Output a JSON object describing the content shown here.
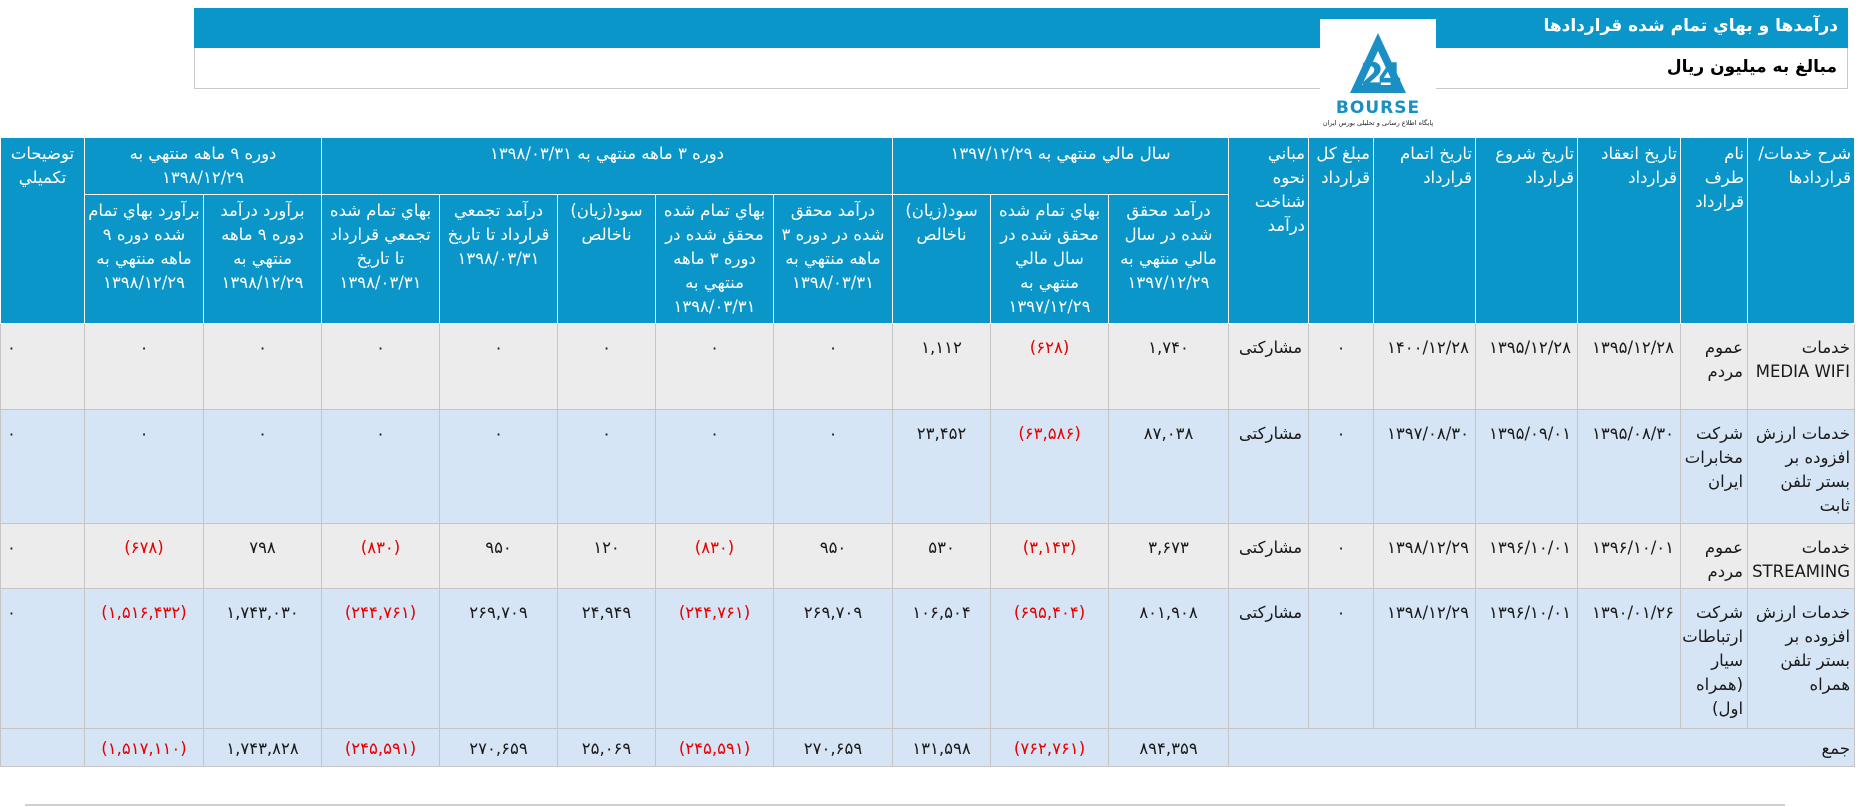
{
  "header": {
    "title": "درآمدها و بهاي تمام شده قراردادها",
    "unit_note": "مبالغ به ميليون ريال"
  },
  "logo": {
    "brand_text": "BOURSE",
    "tagline": "پایگاه اطلاع رسانی و تحلیلی بورس ایران",
    "number": "24",
    "color": "#1a8fc4"
  },
  "table": {
    "groups": {
      "fiscal_year": "سال مالي منتهي به ۱۳۹۷/۱۲/۲۹",
      "period_3m": "دوره ۳ ماهه منتهي به ۱۳۹۸/۰۳/۳۱",
      "period_9m": "دوره ۹ ماهه منتهي به ۱۳۹۸/۱۲/۲۹"
    },
    "columns": {
      "service": "شرح خدمات/ قراردادها",
      "party": "نام طرف قرارداد",
      "contract_date": "تاريخ انعقاد قرارداد",
      "start_date": "تاريخ شروع قرارداد",
      "end_date": "تاريخ اتمام قرارداد",
      "total_amount": "مبلغ كل قرارداد",
      "recognition_basis": "مباني نحوه شناخت درآمد",
      "fy_revenue": "درآمد محقق شده در سال مالي منتهي به ۱۳۹۷/۱۲/۲۹",
      "fy_cost": "بهاي تمام شده محقق شده در سال مالي منتهي به ۱۳۹۷/۱۲/۲۹",
      "fy_profit": "سود(زيان) ناخالص",
      "p3_revenue": "درآمد محقق شده در دوره ۳ ماهه منتهي به ۱۳۹۸/۰۳/۳۱",
      "p3_cost": "بهاي تمام شده محقق شده در دوره ۳ ماهه منتهي به ۱۳۹۸/۰۳/۳۱",
      "p3_profit": "سود(زيان) ناخالص",
      "cum_revenue": "درآمد تجمعي قرارداد تا تاريخ ۱۳۹۸/۰۳/۳۱",
      "cum_cost": "بهاي تمام شده تجمعي قرارداد تا تاريخ ۱۳۹۸/۰۳/۳۱",
      "est_revenue": "برآورد درآمد دوره ۹ ماهه منتهي به ۱۳۹۸/۱۲/۲۹",
      "est_cost": "برآورد بهاي تمام شده دوره ۹ ماهه منتهي به ۱۳۹۸/۱۲/۲۹",
      "notes": "توضيحات تكميلي"
    },
    "rows": [
      {
        "service": "خدمات MEDIA WIFI",
        "party": "عموم مردم",
        "contract_date": "۱۳۹۵/۱۲/۲۸",
        "start_date": "۱۳۹۵/۱۲/۲۸",
        "end_date": "۱۴۰۰/۱۲/۲۸",
        "total_amount": "۰",
        "recognition_basis": "مشاركتی",
        "fy_revenue": "۱,۷۴۰",
        "fy_cost": "(۶۲۸)",
        "fy_profit": "۱,۱۱۲",
        "p3_revenue": "۰",
        "p3_cost": "۰",
        "p3_profit": "۰",
        "cum_revenue": "۰",
        "cum_cost": "۰",
        "est_revenue": "۰",
        "est_cost": "۰",
        "notes": "۰"
      },
      {
        "service": "خدمات ارزش افزوده بر بستر تلفن ثابت",
        "party": "شرکت مخابرات ایران",
        "contract_date": "۱۳۹۵/۰۸/۳۰",
        "start_date": "۱۳۹۵/۰۹/۰۱",
        "end_date": "۱۳۹۷/۰۸/۳۰",
        "total_amount": "۰",
        "recognition_basis": "مشاركتی",
        "fy_revenue": "۸۷,۰۳۸",
        "fy_cost": "(۶۳,۵۸۶)",
        "fy_profit": "۲۳,۴۵۲",
        "p3_revenue": "۰",
        "p3_cost": "۰",
        "p3_profit": "۰",
        "cum_revenue": "۰",
        "cum_cost": "۰",
        "est_revenue": "۰",
        "est_cost": "۰",
        "notes": "۰"
      },
      {
        "service": "خدمات STREAMING",
        "party": "عموم مردم",
        "contract_date": "۱۳۹۶/۱۰/۰۱",
        "start_date": "۱۳۹۶/۱۰/۰۱",
        "end_date": "۱۳۹۸/۱۲/۲۹",
        "total_amount": "۰",
        "recognition_basis": "مشاركتی",
        "fy_revenue": "۳,۶۷۳",
        "fy_cost": "(۳,۱۴۳)",
        "fy_profit": "۵۳۰",
        "p3_revenue": "۹۵۰",
        "p3_cost": "(۸۳۰)",
        "p3_profit": "۱۲۰",
        "cum_revenue": "۹۵۰",
        "cum_cost": "(۸۳۰)",
        "est_revenue": "۷۹۸",
        "est_cost": "(۶۷۸)",
        "notes": "۰"
      },
      {
        "service": "خدمات ارزش افزوده بر بستر تلفن همراه",
        "party": "شرکت ارتباطات سیار (همراه اول)",
        "contract_date": "۱۳۹۰/۰۱/۲۶",
        "start_date": "۱۳۹۶/۱۰/۰۱",
        "end_date": "۱۳۹۸/۱۲/۲۹",
        "total_amount": "۰",
        "recognition_basis": "مشاركتی",
        "fy_revenue": "۸۰۱,۹۰۸",
        "fy_cost": "(۶۹۵,۴۰۴)",
        "fy_profit": "۱۰۶,۵۰۴",
        "p3_revenue": "۲۶۹,۷۰۹",
        "p3_cost": "(۲۴۴,۷۶۱)",
        "p3_profit": "۲۴,۹۴۹",
        "cum_revenue": "۲۶۹,۷۰۹",
        "cum_cost": "(۲۴۴,۷۶۱)",
        "est_revenue": "۱,۷۴۳,۰۳۰",
        "est_cost": "(۱,۵۱۶,۴۳۲)",
        "notes": "۰"
      }
    ],
    "total": {
      "label": "جمع",
      "fy_revenue": "۸۹۴,۳۵۹",
      "fy_cost": "(۷۶۲,۷۶۱)",
      "fy_profit": "۱۳۱,۵۹۸",
      "p3_revenue": "۲۷۰,۶۵۹",
      "p3_cost": "(۲۴۵,۵۹۱)",
      "p3_profit": "۲۵,۰۶۹",
      "cum_revenue": "۲۷۰,۶۵۹",
      "cum_cost": "(۲۴۵,۵۹۱)",
      "est_revenue": "۱,۷۴۳,۸۲۸",
      "est_cost": "(۱,۵۱۷,۱۱۰)"
    }
  }
}
